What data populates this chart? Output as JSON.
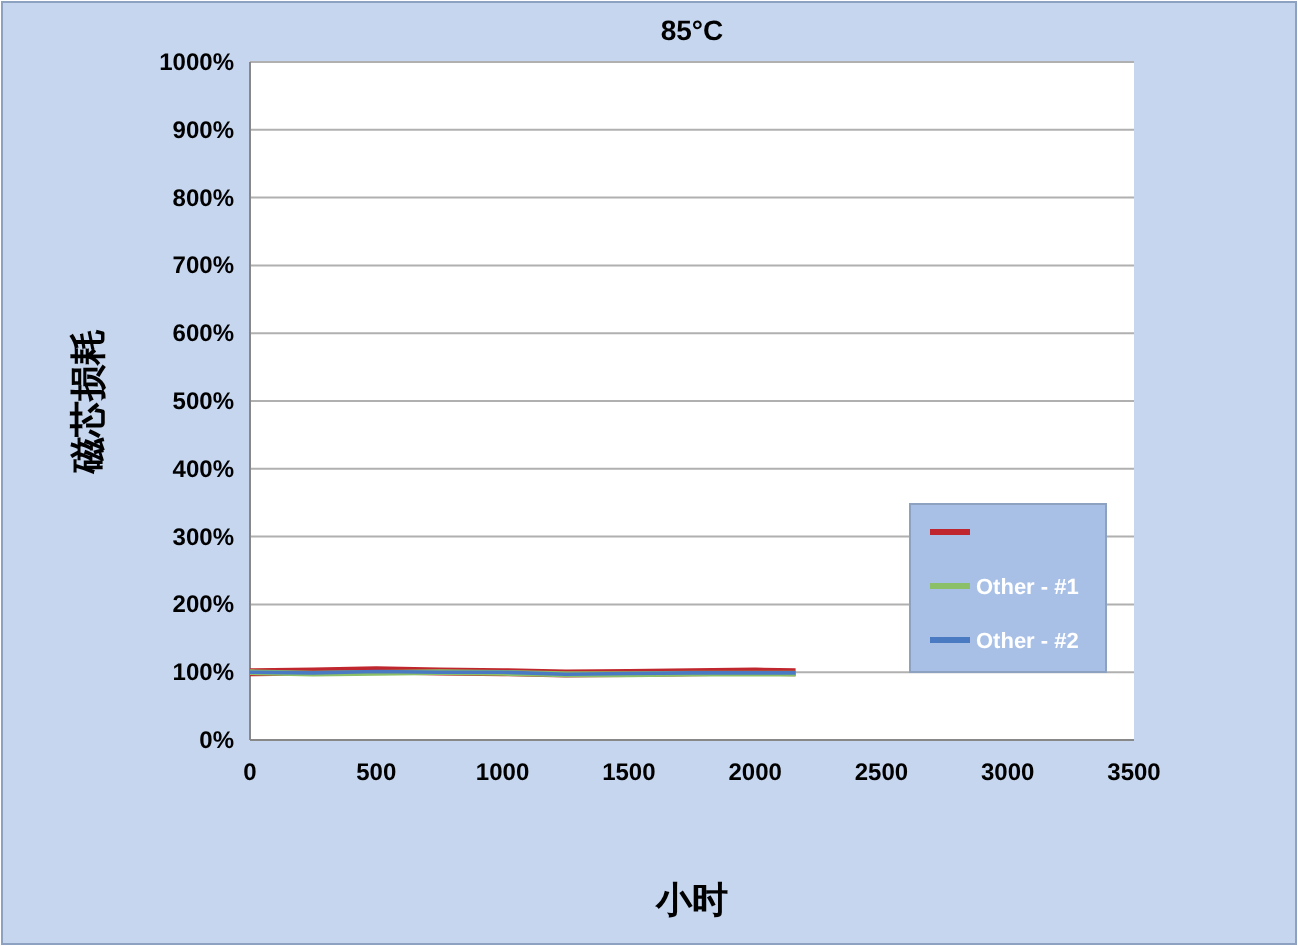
{
  "chart_data": {
    "type": "line",
    "title": "85°C",
    "xlabel": "小时",
    "ylabel": "磁芯损耗",
    "x": [
      0,
      250,
      500,
      750,
      1000,
      1250,
      1500,
      1750,
      2000,
      2160
    ],
    "series": [
      {
        "color": "#c0262d",
        "values": [
          100,
          101,
          103,
          101,
          100,
          98,
          99,
          100,
          101,
          100
        ]
      },
      {
        "name": "Other - #1",
        "color": "#8cc068",
        "values": [
          100,
          98,
          99,
          100,
          99,
          97,
          97,
          98,
          98,
          98
        ]
      },
      {
        "name": "Other - #2",
        "color": "#4a7bc2",
        "values": [
          100,
          99,
          101,
          100,
          100,
          97,
          98,
          99,
          99,
          99
        ]
      }
    ],
    "xlim": [
      0,
      3500
    ],
    "xticks": [
      0,
      500,
      1000,
      1500,
      2000,
      2500,
      3000,
      3500
    ],
    "ylim": [
      0,
      1000
    ],
    "yticks": [
      {
        "value": 0,
        "label": "0%"
      },
      {
        "value": 100,
        "label": "100%"
      },
      {
        "value": 200,
        "label": "200%"
      },
      {
        "value": 300,
        "label": "300%"
      },
      {
        "value": 400,
        "label": "400%"
      },
      {
        "value": 500,
        "label": "500%"
      },
      {
        "value": 600,
        "label": "600%"
      },
      {
        "value": 700,
        "label": "700%"
      },
      {
        "value": 800,
        "label": "800%"
      },
      {
        "value": 900,
        "label": "900%"
      },
      {
        "value": 1000,
        "label": "1000%"
      }
    ],
    "grid": "y",
    "legend": "right",
    "marker": "none",
    "line_style": "solid"
  }
}
